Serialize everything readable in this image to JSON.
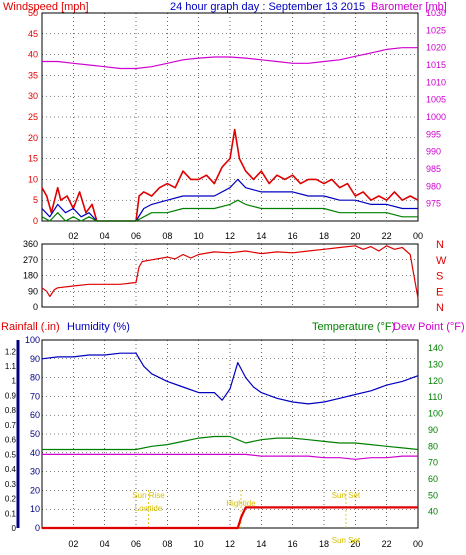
{
  "colors": {
    "red": "#e00000",
    "blue": "#0000c0",
    "green": "#008000",
    "magenta": "#d000d0",
    "navy": "#000080",
    "yellow": "#d8c000"
  },
  "header": {
    "left_title": "Windspeed [mph]",
    "center_title": "24 hour graph day : September 13 2015",
    "right_title": "Barometer [mb]"
  },
  "lower_header": {
    "rainfall": "Rainfall (.in)",
    "humidity": "Humidity (%)",
    "temperature": "Temperature (°F)",
    "dewpoint": "Dew Point (°F)"
  },
  "x_ticks": [
    "02",
    "04",
    "06",
    "08",
    "10",
    "12",
    "14",
    "16",
    "18",
    "20",
    "22",
    "00"
  ],
  "chart_data": [
    {
      "type": "line",
      "title": "Windspeed [mph]",
      "x_unit": "hours",
      "xlim": [
        0,
        24
      ],
      "ylim": [
        0,
        50
      ],
      "yticks": [
        "0",
        "5",
        "10",
        "15",
        "20",
        "25",
        "30",
        "35",
        "40",
        "45",
        "50"
      ],
      "y2lim": [
        970,
        1030
      ],
      "y2ticks": [
        "975",
        "980",
        "985",
        "990",
        "995",
        "1000",
        "1005",
        "1010",
        "1015",
        "1020",
        "1025",
        "1030"
      ],
      "series": [
        {
          "name": "Windspeed [mph]",
          "role": "gust",
          "color": "red",
          "x": [
            0,
            0.3,
            0.6,
            1,
            1.2,
            1.6,
            2,
            2.4,
            2.8,
            3.2,
            3.5,
            6,
            6.2,
            6.5,
            7,
            7.5,
            8,
            8.5,
            9,
            9.5,
            10,
            10.5,
            11,
            11.5,
            12,
            12.3,
            12.6,
            13,
            13.5,
            14,
            14.5,
            15,
            15.5,
            16,
            16.5,
            17,
            17.5,
            18,
            18.5,
            19,
            19.5,
            20,
            20.5,
            21,
            21.5,
            22,
            22.5,
            23,
            23.5,
            24
          ],
          "y": [
            8,
            6,
            2,
            8,
            5,
            6,
            3,
            7,
            2,
            4,
            0,
            0,
            6,
            7,
            6,
            8,
            9,
            8,
            12,
            10,
            10,
            11,
            9,
            13,
            15,
            22,
            15,
            12,
            10,
            12,
            9,
            11,
            10,
            11,
            9,
            10,
            10,
            9,
            10,
            8,
            9,
            6,
            7,
            5,
            6,
            5,
            7,
            5,
            6,
            5
          ]
        },
        {
          "name": "Average wind",
          "role": "average",
          "color": "blue",
          "x": [
            0,
            0.5,
            1,
            1.5,
            2,
            2.5,
            3,
            3.5,
            6,
            6.5,
            7,
            8,
            9,
            10,
            11,
            12,
            12.5,
            13,
            14,
            15,
            16,
            17,
            18,
            19,
            20,
            21,
            22,
            23,
            24
          ],
          "y": [
            3,
            1,
            4,
            2,
            3,
            1,
            2,
            0,
            0,
            3,
            4,
            5,
            6,
            6,
            6,
            8,
            10,
            8,
            7,
            7,
            7,
            6,
            6,
            5,
            5,
            4,
            4,
            3,
            3
          ]
        },
        {
          "name": "Wind (min)",
          "role": "lull",
          "color": "green",
          "x": [
            0,
            0.5,
            1,
            1.5,
            2,
            2.5,
            3,
            3.5,
            6,
            6.5,
            7,
            8,
            9,
            10,
            11,
            12,
            12.5,
            13,
            14,
            15,
            16,
            17,
            18,
            19,
            20,
            21,
            22,
            23,
            24
          ],
          "y": [
            1,
            0,
            2,
            0,
            1,
            0,
            1,
            0,
            0,
            1,
            2,
            2,
            3,
            3,
            3,
            4,
            5,
            4,
            3,
            3,
            3,
            3,
            3,
            2,
            2,
            2,
            2,
            1,
            1
          ]
        },
        {
          "name": "Barometer [mb]",
          "axis": "right",
          "color": "magenta",
          "x": [
            0,
            1,
            2,
            3,
            4,
            5,
            6,
            7,
            8,
            9,
            10,
            11,
            12,
            13,
            14,
            15,
            16,
            17,
            18,
            19,
            20,
            21,
            22,
            23,
            24
          ],
          "y": [
            1016,
            1016,
            1015.5,
            1015,
            1014.5,
            1014,
            1014,
            1014.5,
            1015.5,
            1016.5,
            1017,
            1017.3,
            1017.3,
            1017,
            1016.5,
            1016,
            1015.5,
            1015.5,
            1016,
            1016.5,
            1017.5,
            1018.5,
            1019.5,
            1020,
            1020
          ]
        }
      ]
    },
    {
      "type": "line",
      "title": "Wind direction",
      "x_unit": "hours",
      "xlim": [
        0,
        24
      ],
      "ylim": [
        0,
        360
      ],
      "yticks": [
        "0",
        "90",
        "180",
        "270",
        "360"
      ],
      "right_labels": [
        "N",
        "W",
        "S",
        "E",
        "N"
      ],
      "series": [
        {
          "name": "Wind direction",
          "color": "red",
          "x": [
            0,
            0.3,
            0.5,
            0.8,
            1,
            2,
            3,
            4,
            5,
            6,
            6.2,
            6.4,
            7,
            8,
            8.5,
            9,
            9.5,
            10,
            11,
            12,
            13,
            14,
            15,
            16,
            17,
            18,
            19,
            20,
            20.5,
            21,
            21.5,
            22,
            22.5,
            23,
            23.5,
            24
          ],
          "y": [
            110,
            90,
            60,
            100,
            110,
            120,
            130,
            130,
            130,
            140,
            230,
            260,
            270,
            285,
            275,
            300,
            280,
            300,
            315,
            310,
            320,
            305,
            315,
            310,
            320,
            330,
            340,
            350,
            330,
            345,
            320,
            350,
            330,
            340,
            300,
            50
          ]
        }
      ]
    },
    {
      "type": "line",
      "title": "Rainfall / Humidity / Temperature / Dew Point",
      "x_unit": "hours",
      "xlim": [
        0,
        24
      ],
      "ylim": [
        0,
        100
      ],
      "yticks": [
        "0",
        "10",
        "20",
        "30",
        "40",
        "50",
        "60",
        "70",
        "80",
        "90",
        "100"
      ],
      "rain_ticks": [
        "0",
        "0.1",
        "0.2",
        "0.3",
        "0.4",
        "0.5",
        "0.6",
        "0.7",
        "0.8",
        "0.9",
        "1",
        "1.1",
        "1.2"
      ],
      "y2lim": [
        30,
        145
      ],
      "y2ticks": [
        "40",
        "50",
        "60",
        "70",
        "80",
        "90",
        "100",
        "110",
        "120",
        "130",
        "140"
      ],
      "series": [
        {
          "name": "Humidity (%)",
          "color": "blue",
          "x": [
            0,
            1,
            2,
            3,
            4,
            5,
            6,
            6.5,
            7,
            8,
            9,
            10,
            11,
            11.5,
            12,
            12.5,
            13,
            13.5,
            14,
            15,
            16,
            17,
            18,
            19,
            20,
            21,
            22,
            23,
            24
          ],
          "y": [
            90,
            91,
            91,
            92,
            92,
            93,
            93,
            86,
            82,
            78,
            75,
            72,
            72,
            68,
            74,
            88,
            80,
            75,
            72,
            69,
            67,
            66,
            67,
            69,
            71,
            73,
            76,
            78,
            81
          ]
        },
        {
          "name": "Temperature (°F)",
          "color": "green",
          "x": [
            0,
            1,
            2,
            3,
            4,
            5,
            6,
            7,
            8,
            9,
            10,
            11,
            12,
            12.5,
            13,
            14,
            15,
            16,
            17,
            18,
            19,
            20,
            21,
            22,
            23,
            24
          ],
          "y": [
            78,
            78,
            78,
            78,
            78,
            78,
            78,
            80,
            81,
            83,
            85,
            86,
            86,
            84,
            82,
            84,
            85,
            85,
            84,
            83,
            82,
            82,
            81,
            80,
            79,
            78
          ]
        },
        {
          "name": "Dew Point (°F)",
          "color": "magenta",
          "x": [
            0,
            1,
            2,
            3,
            4,
            5,
            6,
            7,
            8,
            9,
            10,
            11,
            12,
            13,
            14,
            15,
            16,
            17,
            18,
            19,
            20,
            21,
            22,
            23,
            24
          ],
          "y": [
            75,
            75,
            75,
            75,
            75,
            75,
            75,
            75,
            75,
            75,
            75,
            75,
            75,
            75,
            74,
            74,
            74,
            74,
            73,
            73,
            72,
            73,
            73,
            74,
            74
          ]
        },
        {
          "name": "Rainfall (.in)",
          "color": "red",
          "x": [
            0,
            12.5,
            12.7,
            13,
            13.3,
            24
          ],
          "y": [
            0,
            0,
            0.07,
            0.14,
            0.14,
            0.14
          ]
        }
      ],
      "annotations": [
        {
          "label": "Sun Rise",
          "hour": 6.8
        },
        {
          "label": "Lowtide",
          "hour": 6.8
        },
        {
          "label": "Hightide",
          "hour": 12.7
        },
        {
          "label": "Sun Set",
          "hour": 19.4
        },
        {
          "label": "Sun Set",
          "hour": 19.4
        }
      ]
    }
  ]
}
